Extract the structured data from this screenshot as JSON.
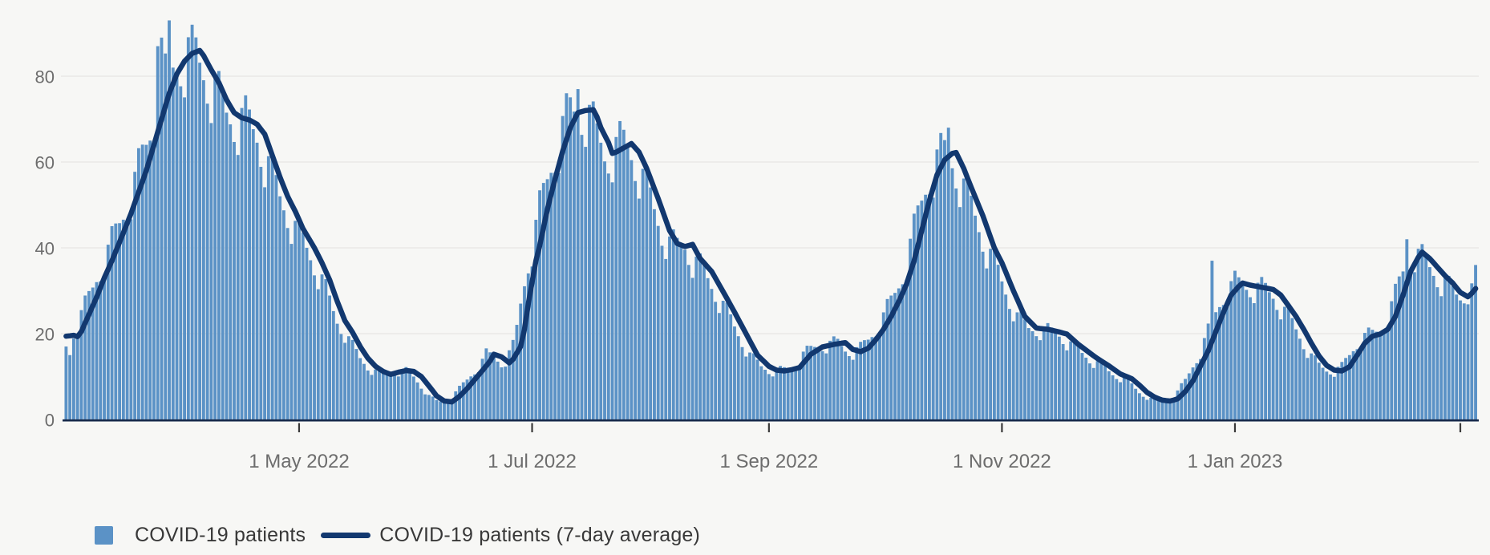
{
  "page": {
    "background": "#f7f7f5"
  },
  "legend": {
    "items": [
      {
        "label": "COVID-19 patients",
        "swatch": "square",
        "color": "#5b92c6"
      },
      {
        "label": "COVID-19 patients (7-day average)",
        "swatch": "line",
        "color": "#12386f"
      }
    ]
  },
  "chart_data": {
    "type": "bar+line",
    "title": "",
    "xlabel": "",
    "ylabel": "",
    "x_axis": {
      "start_date": "2022-03-01",
      "num_days": 370,
      "ticks": [
        {
          "day": 61,
          "label": "1 May 2022"
        },
        {
          "day": 122,
          "label": "1 Jul 2022"
        },
        {
          "day": 184,
          "label": "1 Sep 2022"
        },
        {
          "day": 245,
          "label": "1 Nov 2022"
        },
        {
          "day": 306,
          "label": "1 Jan 2023"
        },
        {
          "day": 365,
          "label": ""
        }
      ]
    },
    "y_axis": {
      "tick_values": [
        0,
        20,
        40,
        60,
        80
      ],
      "range": [
        0,
        97
      ],
      "grid": true
    },
    "series": [
      {
        "name": "COVID-19 patients",
        "type": "bar",
        "color": "#5b92c6",
        "derive_from_average": {
          "lead_days": 2,
          "weekly_pattern": [
            1.04,
            1.09,
            1.05,
            1.0,
            0.97,
            0.92,
            0.88
          ],
          "pattern_phase": 3,
          "max_value": 92
        },
        "observed_values": {
          "0": 17,
          "1": 15,
          "24": 87,
          "25": 89,
          "27": 93,
          "134": 77,
          "139": 69,
          "231": 68,
          "300": 37,
          "351": 42,
          "369": 36
        }
      },
      {
        "name": "COVID-19 patients (7-day average)",
        "type": "line",
        "color": "#12386f",
        "stroke_width": 6.5,
        "points": [
          [
            0,
            19.4
          ],
          [
            2,
            19.6
          ],
          [
            3,
            19.3
          ],
          [
            4,
            20.5
          ],
          [
            6,
            24.5
          ],
          [
            8,
            28.5
          ],
          [
            10,
            33
          ],
          [
            12,
            37
          ],
          [
            15,
            43.5
          ],
          [
            17,
            48
          ],
          [
            19,
            53
          ],
          [
            21,
            58
          ],
          [
            23,
            64
          ],
          [
            25,
            70
          ],
          [
            27,
            76
          ],
          [
            29,
            80.5
          ],
          [
            31,
            83.5
          ],
          [
            33,
            85.3
          ],
          [
            35,
            86
          ],
          [
            36,
            84.8
          ],
          [
            38,
            81.5
          ],
          [
            40,
            78.5
          ],
          [
            42,
            74.5
          ],
          [
            44,
            71.5
          ],
          [
            46,
            70.3
          ],
          [
            48,
            69.8
          ],
          [
            50,
            68.8
          ],
          [
            52,
            66.5
          ],
          [
            54,
            61.5
          ],
          [
            56,
            56.5
          ],
          [
            58,
            52
          ],
          [
            60,
            48.5
          ],
          [
            62,
            44.5
          ],
          [
            65,
            40
          ],
          [
            67,
            36.5
          ],
          [
            69,
            32.5
          ],
          [
            71,
            27.5
          ],
          [
            73,
            23
          ],
          [
            75,
            20.3
          ],
          [
            77,
            17
          ],
          [
            79,
            14.3
          ],
          [
            81,
            12.4
          ],
          [
            83,
            11.2
          ],
          [
            85,
            10.5
          ],
          [
            87,
            11
          ],
          [
            89,
            11.4
          ],
          [
            91,
            11.2
          ],
          [
            93,
            10
          ],
          [
            95,
            7.8
          ],
          [
            97,
            5.5
          ],
          [
            99,
            4.3
          ],
          [
            101,
            4.1
          ],
          [
            103,
            5.4
          ],
          [
            105,
            7.2
          ],
          [
            107,
            9.3
          ],
          [
            109,
            11.4
          ],
          [
            111,
            13.6
          ],
          [
            112,
            15.2
          ],
          [
            114,
            14.6
          ],
          [
            116,
            13.2
          ],
          [
            117,
            14
          ],
          [
            119,
            17
          ],
          [
            120,
            21
          ],
          [
            121,
            27
          ],
          [
            122,
            32
          ],
          [
            123,
            37
          ],
          [
            124,
            40.5
          ],
          [
            126,
            49
          ],
          [
            128,
            56
          ],
          [
            130,
            62.5
          ],
          [
            132,
            68
          ],
          [
            134,
            71.5
          ],
          [
            136,
            72
          ],
          [
            138,
            72.2
          ],
          [
            139,
            70.5
          ],
          [
            140,
            68
          ],
          [
            142,
            64.5
          ],
          [
            143,
            62
          ],
          [
            144,
            62.3
          ],
          [
            146,
            63.3
          ],
          [
            148,
            64.3
          ],
          [
            150,
            62.3
          ],
          [
            152,
            58.5
          ],
          [
            155,
            51.5
          ],
          [
            158,
            44
          ],
          [
            160,
            41
          ],
          [
            162,
            40.3
          ],
          [
            164,
            40.8
          ],
          [
            166,
            37.5
          ],
          [
            169,
            34.5
          ],
          [
            172,
            29.8
          ],
          [
            175,
            25
          ],
          [
            178,
            20
          ],
          [
            181,
            15
          ],
          [
            184,
            12.4
          ],
          [
            186,
            11.5
          ],
          [
            188,
            11.3
          ],
          [
            190,
            11.6
          ],
          [
            192,
            12.1
          ],
          [
            195,
            15.2
          ],
          [
            198,
            16.9
          ],
          [
            201,
            17.5
          ],
          [
            204,
            17.9
          ],
          [
            206,
            16.3
          ],
          [
            208,
            15.8
          ],
          [
            210,
            16.6
          ],
          [
            212,
            18.6
          ],
          [
            214,
            21
          ],
          [
            216,
            24
          ],
          [
            218,
            27.5
          ],
          [
            220,
            31.5
          ],
          [
            222,
            37
          ],
          [
            224,
            44
          ],
          [
            226,
            51
          ],
          [
            228,
            57
          ],
          [
            230,
            60.5
          ],
          [
            232,
            62
          ],
          [
            233,
            62.2
          ],
          [
            235,
            58.5
          ],
          [
            237,
            54
          ],
          [
            240,
            47.5
          ],
          [
            243,
            40
          ],
          [
            245,
            36.5
          ],
          [
            248,
            30
          ],
          [
            251,
            24
          ],
          [
            254,
            21.3
          ],
          [
            257,
            21
          ],
          [
            260,
            20.4
          ],
          [
            262,
            19.9
          ],
          [
            265,
            17.5
          ],
          [
            268,
            15.5
          ],
          [
            270,
            14.2
          ],
          [
            273,
            12.5
          ],
          [
            276,
            10.6
          ],
          [
            279,
            9.5
          ],
          [
            281,
            8
          ],
          [
            283,
            6.3
          ],
          [
            285,
            5.2
          ],
          [
            287,
            4.5
          ],
          [
            289,
            4.3
          ],
          [
            291,
            4.8
          ],
          [
            293,
            6.5
          ],
          [
            295,
            9
          ],
          [
            297,
            12.5
          ],
          [
            299,
            16
          ],
          [
            301,
            20.5
          ],
          [
            303,
            25
          ],
          [
            305,
            29
          ],
          [
            307,
            31
          ],
          [
            308,
            31.8
          ],
          [
            310,
            31.3
          ],
          [
            313,
            30.8
          ],
          [
            316,
            30.3
          ],
          [
            318,
            29
          ],
          [
            320,
            26.5
          ],
          [
            322,
            24
          ],
          [
            324,
            21
          ],
          [
            326,
            17.8
          ],
          [
            328,
            14.8
          ],
          [
            330,
            12.6
          ],
          [
            332,
            11.5
          ],
          [
            334,
            11.3
          ],
          [
            336,
            12.3
          ],
          [
            338,
            15
          ],
          [
            340,
            17.8
          ],
          [
            342,
            19.4
          ],
          [
            344,
            19.9
          ],
          [
            346,
            21
          ],
          [
            348,
            24
          ],
          [
            350,
            29
          ],
          [
            352,
            34.5
          ],
          [
            354,
            37.8
          ],
          [
            355,
            39
          ],
          [
            357,
            37.5
          ],
          [
            359,
            35.5
          ],
          [
            361,
            33.5
          ],
          [
            363,
            31.8
          ],
          [
            365,
            29.6
          ],
          [
            367,
            28.6
          ],
          [
            368,
            29.4
          ],
          [
            369,
            30.5
          ]
        ]
      }
    ]
  },
  "style": {
    "grid_color": "#eae9e6",
    "axis_line_color": "#16294a",
    "tick_mark_color": "#3a3a3a",
    "axis_label_color": "#6d6d6d",
    "y_labels": [
      "0",
      "20",
      "40",
      "60",
      "80"
    ]
  }
}
